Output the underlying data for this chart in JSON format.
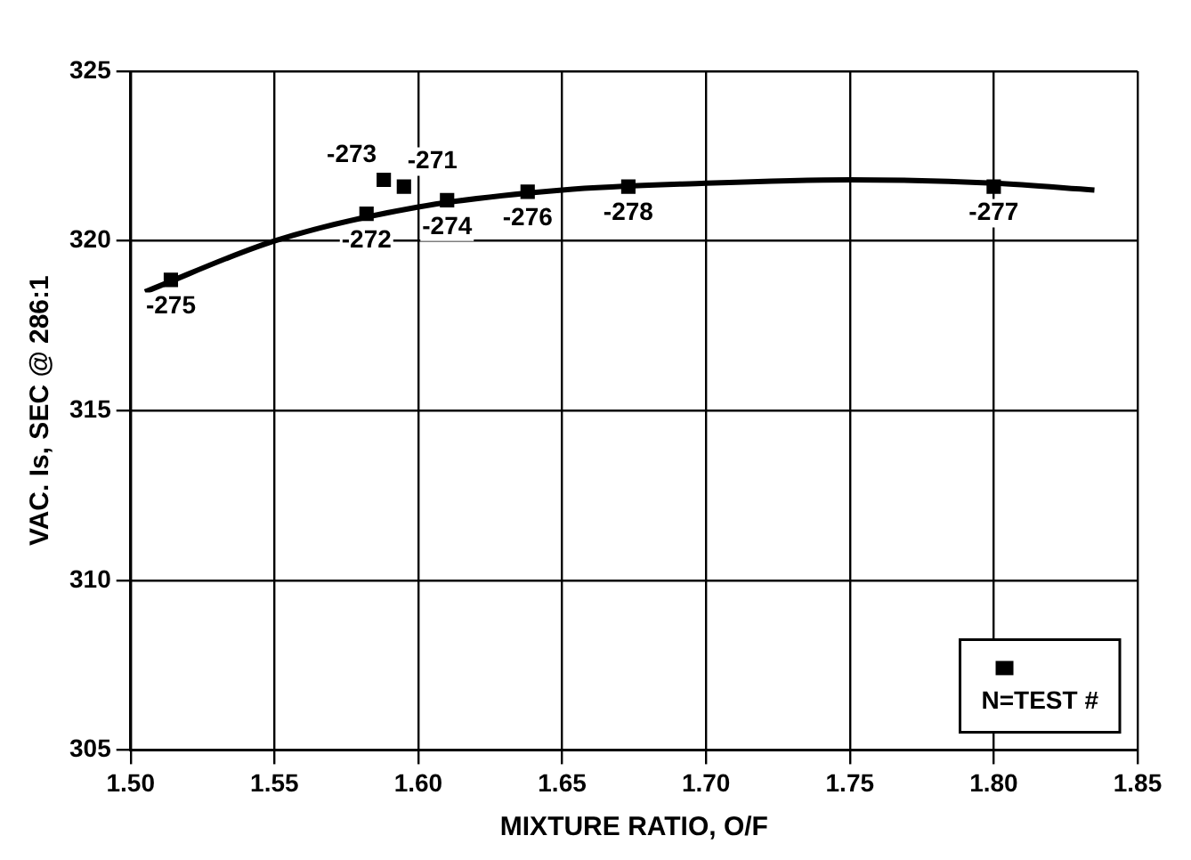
{
  "chart_data": {
    "type": "scatter",
    "xlabel": "MIXTURE RATIO, O/F",
    "ylabel": "VAC. Is, SEC @ 286:1",
    "xlim": [
      1.5,
      1.85
    ],
    "xticks": [
      {
        "value": 1.5,
        "label": "1.50"
      },
      {
        "value": 1.55,
        "label": "1.55"
      },
      {
        "value": 1.6,
        "label": "1.60"
      },
      {
        "value": 1.65,
        "label": "1.65"
      },
      {
        "value": 1.7,
        "label": "1.70"
      },
      {
        "value": 1.75,
        "label": "1.75"
      },
      {
        "value": 1.8,
        "label": "1.80"
      },
      {
        "value": 1.85,
        "label": "1.85"
      }
    ],
    "ylim": [
      305,
      325
    ],
    "yticks": [
      305,
      310,
      315,
      320,
      325
    ],
    "grid": true,
    "legend": "bottom right",
    "series": [
      {
        "name": "N=TEST #",
        "color": "#000000",
        "marker": "square",
        "x": [
          1.514,
          1.582,
          1.588,
          1.595,
          1.61,
          1.638,
          1.673,
          1.8
        ],
        "values": [
          318.85,
          320.8,
          321.8,
          321.6,
          321.2,
          321.45,
          321.6,
          321.6
        ]
      },
      {
        "type": "line",
        "marker": "none",
        "color": "#000000",
        "x": [
          1.505,
          1.55,
          1.6,
          1.65,
          1.7,
          1.75,
          1.8,
          1.835
        ],
        "values": [
          318.5,
          320.0,
          321.0,
          321.5,
          321.7,
          321.8,
          321.7,
          321.5
        ]
      }
    ],
    "annotations": [
      {
        "text": "-275",
        "x": 1.514,
        "y": 318.85
      },
      {
        "text": "-272",
        "x": 1.582,
        "y": 320.8
      },
      {
        "text": "-273",
        "x": 1.588,
        "y": 321.8
      },
      {
        "text": "-271",
        "x": 1.595,
        "y": 321.6
      },
      {
        "text": "-274",
        "x": 1.61,
        "y": 321.2
      },
      {
        "text": "-276",
        "x": 1.638,
        "y": 321.45
      },
      {
        "text": "-278",
        "x": 1.673,
        "y": 321.6
      },
      {
        "text": "-277",
        "x": 1.8,
        "y": 321.6
      }
    ]
  }
}
